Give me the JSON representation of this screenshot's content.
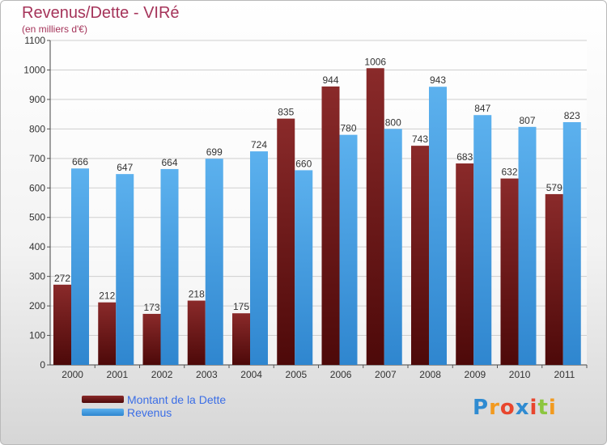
{
  "chart_data": {
    "type": "bar",
    "title": "Revenus/Dette - VIRé",
    "subtitle": "(en milliers d'€)",
    "categories": [
      "2000",
      "2001",
      "2002",
      "2003",
      "2004",
      "2005",
      "2006",
      "2007",
      "2008",
      "2009",
      "2010",
      "2011"
    ],
    "series": [
      {
        "name": "Montant de la Dette",
        "color": "#7a1c1c",
        "values": [
          272,
          212,
          173,
          218,
          175,
          835,
          944,
          1006,
          743,
          683,
          632,
          579
        ]
      },
      {
        "name": "Revenus",
        "color": "#4aa3e6",
        "values": [
          666,
          647,
          664,
          699,
          724,
          660,
          780,
          800,
          943,
          847,
          807,
          823
        ]
      }
    ],
    "y_ticks": [
      "0",
      "100",
      "200",
      "300",
      "400",
      "500",
      "600",
      "700",
      "800",
      "900",
      "1000",
      "1100"
    ],
    "ylim": [
      0,
      1100
    ],
    "grid": true,
    "legend_position": "bottom-left"
  },
  "logo": {
    "letters": [
      "P",
      "r",
      "o",
      "x",
      "i",
      "t",
      "i"
    ],
    "colors": [
      "#2f8bd1",
      "#f29a1f",
      "#e8462e",
      "#2f8bd1",
      "#e8462e",
      "#8cc63f",
      "#f29a1f"
    ]
  }
}
